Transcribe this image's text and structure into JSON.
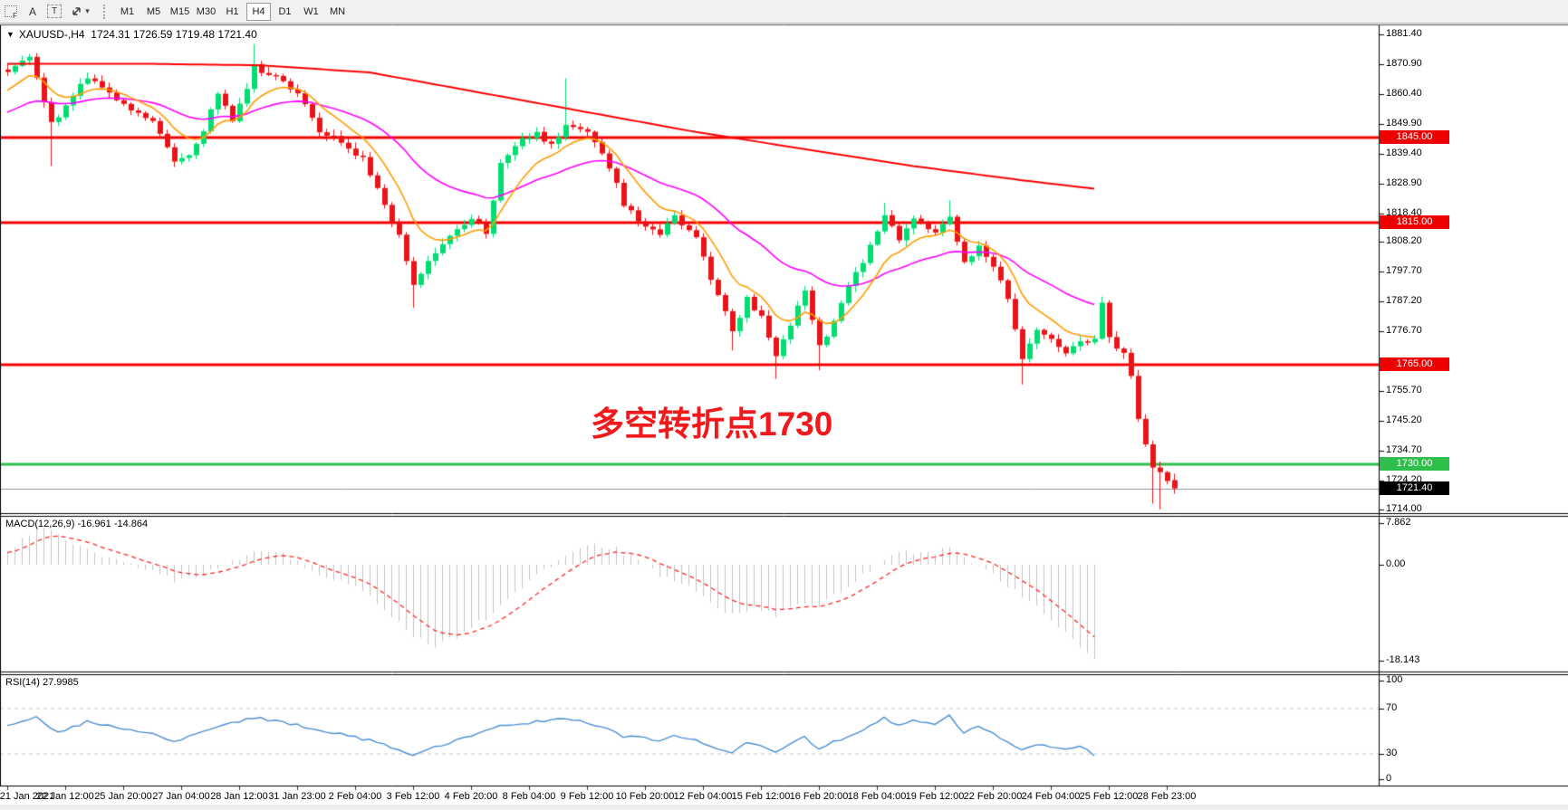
{
  "toolbar": {
    "icons": [
      {
        "name": "indicator-grid-icon",
        "glyph": "F"
      },
      {
        "name": "text-label-icon",
        "glyph": "A"
      },
      {
        "name": "text-box-icon",
        "glyph": "T"
      },
      {
        "name": "cursor-arrows-icon",
        "glyph": ""
      },
      {
        "name": "dropdown-caret-icon",
        "glyph": "▾"
      }
    ],
    "timeframes": [
      {
        "label": "M1"
      },
      {
        "label": "M5"
      },
      {
        "label": "M15"
      },
      {
        "label": "M30"
      },
      {
        "label": "H1"
      },
      {
        "label": "H4",
        "active": true
      },
      {
        "label": "D1"
      },
      {
        "label": "W1"
      },
      {
        "label": "MN"
      }
    ]
  },
  "chart": {
    "dropdown_glyph": "▼",
    "symbol_line": "XAUUSD-,H4  1724.31 1726.59 1719.48 1721.40",
    "annotation": {
      "text": "多空转折点1730",
      "color": "#F0191C"
    },
    "indicators": {
      "macd_label": "MACD(12,26,9) -16.961 -14.864",
      "rsi_label": "RSI(14) 27.9985"
    }
  },
  "price_axis": {
    "ticks": [
      "1881.40",
      "1870.90",
      "1860.40",
      "1849.90",
      "1839.40",
      "1828.90",
      "1818.40",
      "1808.20",
      "1797.70",
      "1787.20",
      "1776.70",
      "1755.70",
      "1745.20",
      "1734.70",
      "1724.20",
      "1714.00"
    ],
    "badges": [
      {
        "label": "1845.00",
        "price": 1845.0,
        "bg": "#EE0000"
      },
      {
        "label": "1815.00",
        "price": 1815.0,
        "bg": "#EE0000"
      },
      {
        "label": "1765.00",
        "price": 1765.0,
        "bg": "#EE0000"
      },
      {
        "label": "1730.00",
        "price": 1730.0,
        "bg": "#2EBE4B"
      },
      {
        "label": "1721.40",
        "price": 1721.4,
        "bg": "#000000"
      }
    ],
    "macd_ticks": [
      {
        "label": "7.862",
        "v": 7.862
      },
      {
        "label": "0.00",
        "v": 0
      },
      {
        "label": "-18.143",
        "v": -18.143
      }
    ],
    "rsi_ticks": [
      {
        "label": "100",
        "v": 100
      },
      {
        "label": "70",
        "v": 70
      },
      {
        "label": "30",
        "v": 30
      },
      {
        "label": "0",
        "v": 0
      }
    ]
  },
  "time_axis": {
    "labels": [
      "21 Jan 2021",
      "22 Jan 12:00",
      "25 Jan 20:00",
      "27 Jan 04:00",
      "28 Jan 12:00",
      "31 Jan 23:00",
      "2 Feb 04:00",
      "3 Feb 12:00",
      "4 Feb 20:00",
      "8 Feb 04:00",
      "9 Feb 12:00",
      "10 Feb 20:00",
      "12 Feb 04:00",
      "15 Feb 12:00",
      "16 Feb 20:00",
      "18 Feb 04:00",
      "19 Feb 12:00",
      "22 Feb 20:00",
      "24 Feb 04:00",
      "25 Feb 12:00",
      "28 Feb 23:00"
    ]
  },
  "chart_data": {
    "type": "candlestick",
    "symbol": "XAUUSD-",
    "timeframe": "H4",
    "bars": 162,
    "indicator_end_bar": 150,
    "visible_price_range": [
      1714.0,
      1881.4
    ],
    "last_ohlc": {
      "open": 1724.31,
      "high": 1726.59,
      "low": 1719.48,
      "close": 1721.4
    },
    "up_color": "#00DE72",
    "down_color": "#E91417",
    "levels": [
      {
        "price": 1845.0,
        "color": "#F50000",
        "width": 3,
        "kind": "resistance"
      },
      {
        "price": 1815.0,
        "color": "#F50000",
        "width": 3,
        "kind": "resistance"
      },
      {
        "price": 1765.0,
        "color": "#F50000",
        "width": 3,
        "kind": "resistance"
      },
      {
        "price": 1730.0,
        "color": "#2EBE4B",
        "width": 3,
        "kind": "support"
      },
      {
        "price": 1721.4,
        "color": "#8A919C",
        "width": 1,
        "kind": "current-price"
      }
    ],
    "price_path": [
      [
        0,
        1868
      ],
      [
        3,
        1873
      ],
      [
        6,
        1850
      ],
      [
        11,
        1866
      ],
      [
        16,
        1857
      ],
      [
        20,
        1851
      ],
      [
        23,
        1836
      ],
      [
        26,
        1842
      ],
      [
        29,
        1861
      ],
      [
        31,
        1850
      ],
      [
        34,
        1870
      ],
      [
        38,
        1866
      ],
      [
        40,
        1860
      ],
      [
        43,
        1848
      ],
      [
        46,
        1843
      ],
      [
        49,
        1838
      ],
      [
        51,
        1828
      ],
      [
        54,
        1810
      ],
      [
        56,
        1792
      ],
      [
        58,
        1801
      ],
      [
        61,
        1810
      ],
      [
        64,
        1816
      ],
      [
        66,
        1812
      ],
      [
        68,
        1835
      ],
      [
        70,
        1843
      ],
      [
        73,
        1846
      ],
      [
        75,
        1843
      ],
      [
        77,
        1849
      ],
      [
        80,
        1846
      ],
      [
        82,
        1840
      ],
      [
        85,
        1822
      ],
      [
        87,
        1815
      ],
      [
        90,
        1812
      ],
      [
        92,
        1818
      ],
      [
        95,
        1810
      ],
      [
        97,
        1794
      ],
      [
        100,
        1777
      ],
      [
        102,
        1788
      ],
      [
        104,
        1781
      ],
      [
        106,
        1768
      ],
      [
        108,
        1780
      ],
      [
        110,
        1790
      ],
      [
        112,
        1772
      ],
      [
        114,
        1780
      ],
      [
        116,
        1792
      ],
      [
        119,
        1806
      ],
      [
        121,
        1817
      ],
      [
        123,
        1810
      ],
      [
        125,
        1816
      ],
      [
        128,
        1812
      ],
      [
        130,
        1818
      ],
      [
        132,
        1800
      ],
      [
        134,
        1808
      ],
      [
        136,
        1800
      ],
      [
        138,
        1788
      ],
      [
        140,
        1768
      ],
      [
        142,
        1778
      ],
      [
        144,
        1775
      ],
      [
        146,
        1770
      ],
      [
        148,
        1772
      ],
      [
        150,
        1774
      ],
      [
        151,
        1786
      ],
      [
        152,
        1776
      ],
      [
        153,
        1771
      ],
      [
        154,
        1769
      ],
      [
        155,
        1762
      ],
      [
        156,
        1747
      ],
      [
        157,
        1738
      ],
      [
        158,
        1729
      ],
      [
        159,
        1726
      ],
      [
        160,
        1724
      ],
      [
        161,
        1721.4
      ]
    ],
    "wick_lows": [
      [
        6,
        1835
      ],
      [
        56,
        1785
      ],
      [
        100,
        1770
      ],
      [
        106,
        1760
      ],
      [
        112,
        1763
      ],
      [
        140,
        1758
      ],
      [
        158,
        1716
      ],
      [
        159,
        1714
      ]
    ],
    "wick_highs": [
      [
        34,
        1878
      ],
      [
        77,
        1866
      ],
      [
        121,
        1822
      ],
      [
        130,
        1823
      ],
      [
        151,
        1789
      ]
    ],
    "ma": {
      "red_color": "#FE0000",
      "red_anchors": [
        [
          0,
          1871
        ],
        [
          20,
          1871
        ],
        [
          35,
          1870.5
        ],
        [
          50,
          1868
        ],
        [
          65,
          1861
        ],
        [
          80,
          1854
        ],
        [
          95,
          1847
        ],
        [
          110,
          1841
        ],
        [
          125,
          1835
        ],
        [
          140,
          1830
        ],
        [
          150,
          1827
        ]
      ],
      "orange": {
        "color": "#FF9C00",
        "alpha": 0.2,
        "seed": 1860
      },
      "magenta": {
        "color": "#FF00FF",
        "alpha": 0.065,
        "seed": 1853
      }
    },
    "macd": {
      "label_values": {
        "macd": -16.961,
        "signal": -14.864
      },
      "range": [
        -18.143,
        7.862
      ],
      "hist_color": "#C3C3C3",
      "signal_color": "#FF2626",
      "signal_alpha": 0.22,
      "anchors": [
        [
          0,
          2
        ],
        [
          4,
          7.3
        ],
        [
          7,
          5.5
        ],
        [
          12,
          2
        ],
        [
          16,
          0.5
        ],
        [
          20,
          -1
        ],
        [
          23,
          -3
        ],
        [
          27,
          -2
        ],
        [
          31,
          0.5
        ],
        [
          34,
          2.5
        ],
        [
          38,
          2
        ],
        [
          42,
          -1
        ],
        [
          46,
          -3
        ],
        [
          50,
          -6
        ],
        [
          53,
          -9.5
        ],
        [
          56,
          -13.5
        ],
        [
          59,
          -15.5
        ],
        [
          62,
          -13.5
        ],
        [
          66,
          -10
        ],
        [
          70,
          -5
        ],
        [
          74,
          -1
        ],
        [
          77,
          2
        ],
        [
          80,
          4
        ],
        [
          84,
          3
        ],
        [
          87,
          0.5
        ],
        [
          90,
          -2
        ],
        [
          93,
          -3.5
        ],
        [
          96,
          -6
        ],
        [
          100,
          -9.5
        ],
        [
          103,
          -8
        ],
        [
          106,
          -9.5
        ],
        [
          109,
          -7
        ],
        [
          112,
          -8
        ],
        [
          115,
          -5
        ],
        [
          118,
          -2
        ],
        [
          121,
          1
        ],
        [
          124,
          2.5
        ],
        [
          127,
          2
        ],
        [
          130,
          3
        ],
        [
          133,
          0.5
        ],
        [
          136,
          -1.5
        ],
        [
          138,
          -4
        ],
        [
          141,
          -7
        ],
        [
          144,
          -10.5
        ],
        [
          147,
          -14
        ],
        [
          150,
          -18.1
        ]
      ]
    },
    "rsi": {
      "period": 14,
      "current": 27.9985,
      "color": "#4A8FD3",
      "level_color": "#C9C9C9",
      "levels": [
        70,
        30
      ],
      "anchors": [
        [
          0,
          55
        ],
        [
          4,
          62
        ],
        [
          7,
          48
        ],
        [
          11,
          58
        ],
        [
          16,
          52
        ],
        [
          20,
          47
        ],
        [
          23,
          40
        ],
        [
          29,
          53
        ],
        [
          34,
          62
        ],
        [
          40,
          55
        ],
        [
          46,
          47
        ],
        [
          51,
          40
        ],
        [
          56,
          29
        ],
        [
          58,
          34
        ],
        [
          64,
          45
        ],
        [
          68,
          54
        ],
        [
          73,
          58
        ],
        [
          77,
          61
        ],
        [
          82,
          54
        ],
        [
          85,
          45
        ],
        [
          90,
          42
        ],
        [
          92,
          47
        ],
        [
          97,
          37
        ],
        [
          100,
          31
        ],
        [
          102,
          40
        ],
        [
          106,
          32
        ],
        [
          110,
          44
        ],
        [
          112,
          35
        ],
        [
          116,
          45
        ],
        [
          119,
          54
        ],
        [
          121,
          61
        ],
        [
          123,
          55
        ],
        [
          125,
          59
        ],
        [
          128,
          56
        ],
        [
          130,
          64
        ],
        [
          132,
          48
        ],
        [
          134,
          54
        ],
        [
          136,
          48
        ],
        [
          138,
          41
        ],
        [
          140,
          32
        ],
        [
          142,
          38
        ],
        [
          144,
          36
        ],
        [
          146,
          33
        ],
        [
          148,
          37
        ],
        [
          150,
          28
        ]
      ]
    }
  }
}
